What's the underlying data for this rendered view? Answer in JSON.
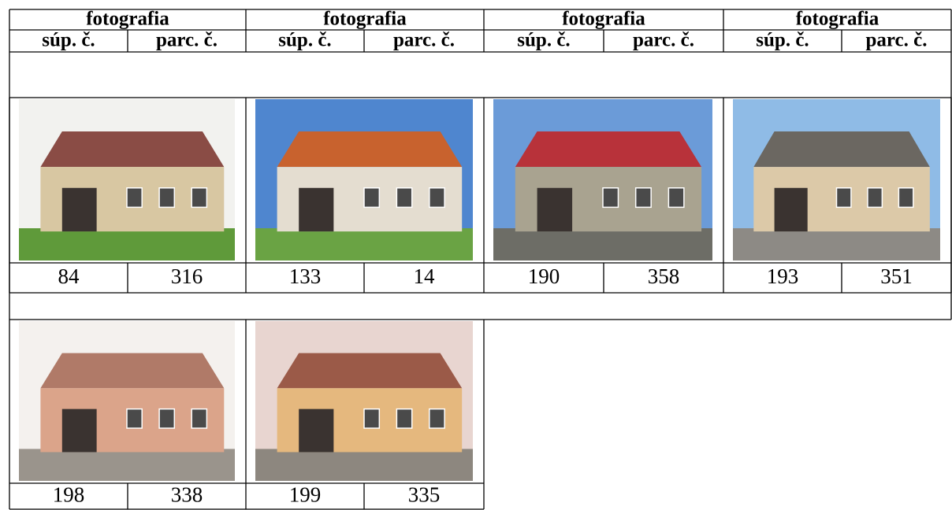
{
  "table": {
    "groups": [
      {
        "title": "fotografia",
        "columns": [
          "súp. č.",
          "parc. č."
        ]
      },
      {
        "title": "fotografia",
        "columns": [
          "súp. č.",
          "parc. č."
        ]
      },
      {
        "title": "fotografia",
        "columns": [
          "súp. č.",
          "parc. č."
        ]
      },
      {
        "title": "fotografia",
        "columns": [
          "súp. č.",
          "parc. č."
        ]
      }
    ],
    "rows": [
      [
        {
          "sup": 84,
          "parc": 316
        },
        {
          "sup": 133,
          "parc": 14
        },
        {
          "sup": 190,
          "parc": 358
        },
        {
          "sup": 193,
          "parc": 351
        }
      ],
      [
        {
          "sup": 198,
          "parc": 338
        },
        {
          "sup": 199,
          "parc": 335
        }
      ]
    ]
  }
}
